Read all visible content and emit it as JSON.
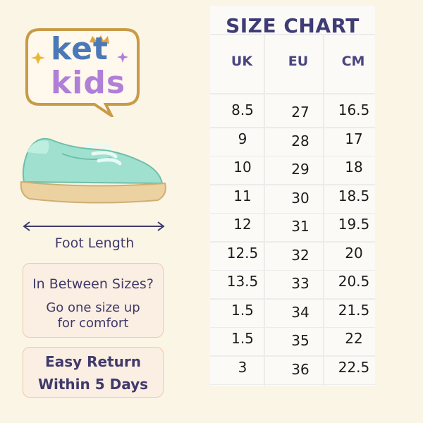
{
  "logo": {
    "line1": "ket",
    "line2": "kids"
  },
  "foot_length_label": "Foot Length",
  "tip_box": {
    "title": "In Between Sizes?",
    "line1": "Go one size up",
    "line2": "for comfort"
  },
  "return_box": {
    "line1": "Easy Return",
    "line2": "Within 5 Days"
  },
  "size_chart": {
    "title": "SIZE CHART",
    "columns": [
      "UK",
      "EU",
      "CM"
    ],
    "rows": [
      [
        "8.5",
        "27",
        "16.5"
      ],
      [
        "9",
        "28",
        "17"
      ],
      [
        "10",
        "29",
        "18"
      ],
      [
        "11",
        "30",
        "18.5"
      ],
      [
        "12",
        "31",
        "19.5"
      ],
      [
        "12.5",
        "32",
        "20"
      ],
      [
        "13.5",
        "33",
        "20.5"
      ],
      [
        "1.5",
        "34",
        "21.5"
      ],
      [
        "1.5",
        "35",
        "22"
      ],
      [
        "3",
        "36",
        "22.5"
      ]
    ]
  },
  "colors": {
    "background": "#fbf5e6",
    "accent_purple": "#3f3a6b",
    "shoe_mint": "#9fe0cf",
    "logo_blue": "#4a78b8",
    "logo_purple": "#b07fd8"
  }
}
